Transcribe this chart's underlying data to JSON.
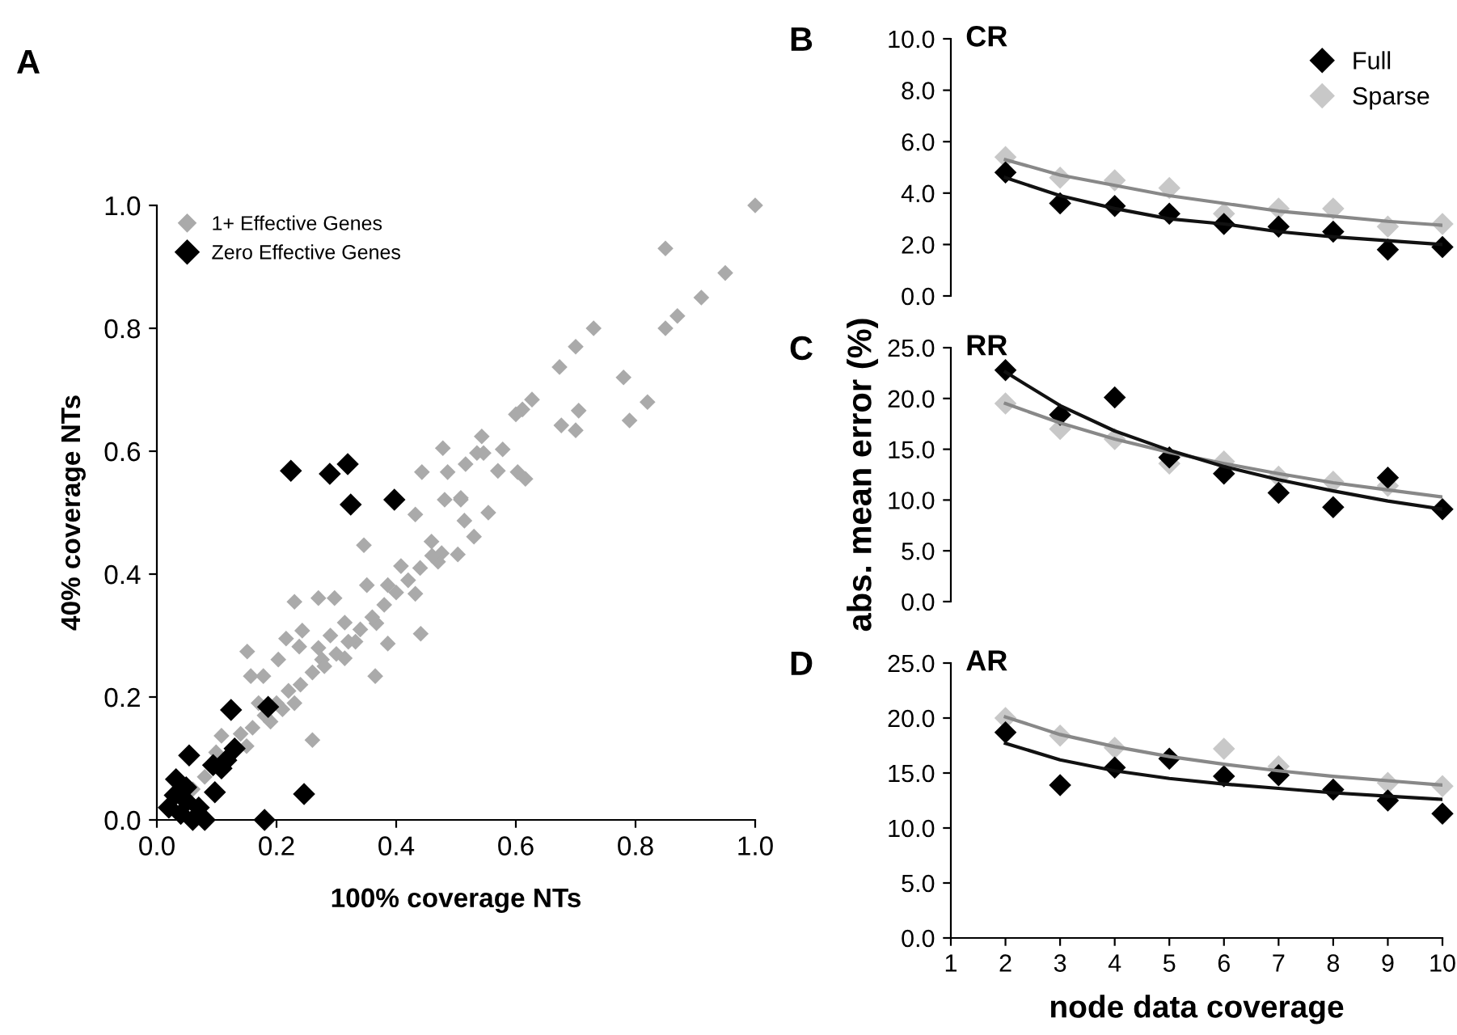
{
  "chart_data": [
    {
      "type": "scatter",
      "xlabel": "100% coverage NTs",
      "ylabel": "40% coverage NTs",
      "annotations": [
        "A"
      ],
      "xlim": [
        0,
        1
      ],
      "ylim": [
        0,
        1
      ],
      "xticks": [
        {
          "value": 0,
          "label": "0.0"
        },
        0.2,
        0.4,
        0.6,
        0.8,
        {
          "value": 1,
          "label": "1.0"
        }
      ],
      "yticks": [
        {
          "value": 0,
          "label": "0.0"
        },
        0.2,
        0.4,
        0.6,
        0.8,
        {
          "value": 1,
          "label": "1.0"
        }
      ],
      "legend": "top left",
      "marker": "diamond",
      "grid": false,
      "series": [
        {
          "name": "1+ Effective Genes",
          "color": "#aaaaaa",
          "x": [
            0.673,
            0.627,
            0.611,
            0.676,
            0.705,
            0.7,
            0.543,
            0.478,
            0.535,
            0.546,
            0.578,
            0.516,
            0.443,
            0.486,
            0.57,
            0.603,
            0.616,
            0.481,
            0.508,
            0.432,
            0.554,
            1.0,
            0.85,
            0.95,
            0.91,
            0.87,
            0.85,
            0.73,
            0.7,
            0.78,
            0.82,
            0.79,
            0.6,
            0.508,
            0.514,
            0.53,
            0.346,
            0.459,
            0.476,
            0.503,
            0.47,
            0.408,
            0.386,
            0.432,
            0.351,
            0.297,
            0.23,
            0.27,
            0.243,
            0.216,
            0.238,
            0.151,
            0.203,
            0.178,
            0.157,
            0.276,
            0.314,
            0.365,
            0.386,
            0.441,
            0.332,
            0.367,
            0.314,
            0.26,
            0.108,
            0.099,
            0.14,
            0.16,
            0.18,
            0.2,
            0.22,
            0.24,
            0.26,
            0.28,
            0.3,
            0.32,
            0.34,
            0.36,
            0.38,
            0.4,
            0.42,
            0.44,
            0.46,
            0.08,
            0.06,
            0.17,
            0.19,
            0.15,
            0.21,
            0.23,
            0.27,
            0.29
          ],
          "values": [
            0.737,
            0.684,
            0.668,
            0.642,
            0.666,
            0.634,
            0.624,
            0.605,
            0.597,
            0.597,
            0.603,
            0.579,
            0.566,
            0.566,
            0.568,
            0.566,
            0.555,
            0.521,
            0.521,
            0.497,
            0.5,
            1.0,
            0.93,
            0.89,
            0.85,
            0.82,
            0.8,
            0.8,
            0.77,
            0.72,
            0.68,
            0.65,
            0.66,
            0.524,
            0.487,
            0.461,
            0.447,
            0.453,
            0.434,
            0.432,
            0.42,
            0.413,
            0.382,
            0.368,
            0.382,
            0.361,
            0.355,
            0.361,
            0.308,
            0.295,
            0.282,
            0.274,
            0.261,
            0.234,
            0.234,
            0.261,
            0.263,
            0.234,
            0.287,
            0.303,
            0.29,
            0.32,
            0.321,
            0.13,
            0.137,
            0.11,
            0.14,
            0.15,
            0.17,
            0.19,
            0.21,
            0.22,
            0.24,
            0.25,
            0.27,
            0.29,
            0.31,
            0.33,
            0.35,
            0.37,
            0.39,
            0.41,
            0.43,
            0.07,
            0.05,
            0.19,
            0.16,
            0.12,
            0.18,
            0.19,
            0.28,
            0.3
          ]
        },
        {
          "name": "Zero Effective Genes",
          "color": "#000000",
          "x": [
            0.224,
            0.289,
            0.319,
            0.324,
            0.397,
            0.124,
            0.186,
            0.246,
            0.054,
            0.13,
            0.116,
            0.094,
            0.108,
            0.097,
            0.032,
            0.049,
            0.02,
            0.04,
            0.06,
            0.03,
            0.07,
            0.18,
            0.05,
            0.08
          ],
          "values": [
            0.568,
            0.563,
            0.579,
            0.513,
            0.521,
            0.179,
            0.184,
            0.042,
            0.105,
            0.116,
            0.097,
            0.089,
            0.084,
            0.045,
            0.066,
            0.053,
            0.02,
            0.01,
            0.0,
            0.04,
            0.02,
            0.0,
            0.03,
            0.0
          ]
        }
      ]
    },
    {
      "type": "scatter",
      "title": "CR",
      "annotations": [
        "B"
      ],
      "x": [
        2,
        3,
        4,
        5,
        6,
        7,
        8,
        9,
        10
      ],
      "xlim": [
        1,
        10
      ],
      "xticks": [
        1,
        2,
        3,
        4,
        5,
        6,
        7,
        8,
        9,
        10
      ],
      "ylim": [
        0,
        10
      ],
      "yticks": [
        {
          "value": 0,
          "label": "0.0"
        },
        {
          "value": 2,
          "label": "2.0"
        },
        {
          "value": 4,
          "label": "4.0"
        },
        {
          "value": 6,
          "label": "6.0"
        },
        {
          "value": 8,
          "label": "8.0"
        },
        {
          "value": 10,
          "label": "10.0"
        }
      ],
      "tick_labels": "y",
      "legend": "top right",
      "marker": "diamond",
      "grid": false,
      "series": [
        {
          "name": "Sparse",
          "color": "#c8c8c8",
          "values": [
            5.4,
            4.6,
            4.5,
            4.2,
            3.2,
            3.4,
            3.4,
            2.7,
            2.8
          ]
        },
        {
          "name": "Full",
          "color": "#000000",
          "values": [
            4.8,
            3.6,
            3.5,
            3.2,
            2.8,
            2.7,
            2.5,
            1.8,
            1.9
          ]
        },
        {
          "type": "line",
          "marker": "none",
          "color": "#888888",
          "values": [
            5.3,
            4.7,
            4.3,
            3.9,
            3.6,
            3.3,
            3.1,
            2.9,
            2.75
          ]
        },
        {
          "type": "line",
          "marker": "none",
          "color": "#111111",
          "values": [
            4.6,
            3.9,
            3.4,
            3.0,
            2.8,
            2.5,
            2.3,
            2.15,
            2.0
          ]
        }
      ]
    },
    {
      "type": "scatter",
      "title": "RR",
      "ylabel": "abs. mean error (%)",
      "annotations": [
        "C"
      ],
      "x": [
        2,
        3,
        4,
        5,
        6,
        7,
        8,
        9,
        10
      ],
      "xlim": [
        1,
        10
      ],
      "xticks": [
        1,
        2,
        3,
        4,
        5,
        6,
        7,
        8,
        9,
        10
      ],
      "ylim": [
        0,
        25
      ],
      "yticks": [
        {
          "value": 0,
          "label": "0.0"
        },
        {
          "value": 5,
          "label": "5.0"
        },
        {
          "value": 10,
          "label": "10.0"
        },
        {
          "value": 15,
          "label": "15.0"
        },
        {
          "value": 20,
          "label": "20.0"
        },
        {
          "value": 25,
          "label": "25.0"
        }
      ],
      "tick_labels": "y",
      "marker": "diamond",
      "grid": false,
      "series": [
        {
          "color": "#c8c8c8",
          "values": [
            19.5,
            17.0,
            16.0,
            13.6,
            13.8,
            12.3,
            11.8,
            11.4,
            null
          ]
        },
        {
          "color": "#000000",
          "values": [
            22.8,
            18.4,
            20.1,
            14.2,
            12.6,
            10.7,
            9.3,
            12.2,
            9.1
          ]
        },
        {
          "type": "line",
          "marker": "none",
          "color": "#888888",
          "values": [
            19.5,
            17.6,
            16.0,
            14.7,
            13.6,
            12.6,
            11.7,
            11.0,
            10.3
          ]
        },
        {
          "type": "line",
          "marker": "none",
          "color": "#111111",
          "values": [
            22.6,
            19.3,
            16.8,
            14.9,
            13.3,
            12.0,
            10.9,
            9.9,
            9.1
          ]
        }
      ]
    },
    {
      "type": "scatter",
      "title": "AR",
      "xlabel": "node data coverage",
      "annotations": [
        "D"
      ],
      "x": [
        2,
        3,
        4,
        5,
        6,
        7,
        8,
        9,
        10
      ],
      "xlim": [
        1,
        10
      ],
      "xticks": [
        1,
        2,
        3,
        4,
        5,
        6,
        7,
        8,
        9,
        10
      ],
      "ylim": [
        0,
        25
      ],
      "yticks": [
        {
          "value": 0,
          "label": "0.0"
        },
        {
          "value": 5,
          "label": "5.0"
        },
        {
          "value": 10,
          "label": "10.0"
        },
        {
          "value": 15,
          "label": "15.0"
        },
        {
          "value": 20,
          "label": "20.0"
        },
        {
          "value": 25,
          "label": "25.0"
        }
      ],
      "marker": "diamond",
      "grid": false,
      "series": [
        {
          "color": "#c8c8c8",
          "values": [
            20.0,
            18.4,
            17.3,
            null,
            17.2,
            15.6,
            null,
            14.1,
            13.8
          ]
        },
        {
          "color": "#000000",
          "values": [
            18.7,
            13.9,
            15.5,
            16.3,
            14.7,
            14.8,
            13.5,
            12.5,
            11.3
          ]
        },
        {
          "type": "line",
          "marker": "none",
          "color": "#888888",
          "values": [
            20.1,
            18.5,
            17.4,
            16.5,
            15.8,
            15.2,
            14.7,
            14.3,
            13.9
          ]
        },
        {
          "type": "line",
          "marker": "none",
          "color": "#111111",
          "values": [
            17.7,
            16.2,
            15.2,
            14.5,
            14.0,
            13.6,
            13.2,
            12.9,
            12.6
          ]
        }
      ]
    }
  ]
}
